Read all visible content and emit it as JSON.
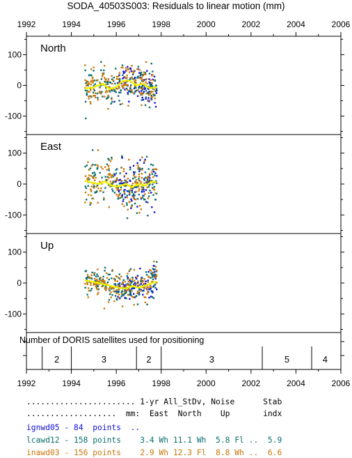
{
  "title": "SODA_40503S003: Residuals to linear motion (mm)",
  "colors": {
    "ignwd05": "#1010d8",
    "lcawd12": "#0a6e6e",
    "inawd03": "#c8780a",
    "smooth": "#f0f000",
    "frame": "#000000"
  },
  "chart_data": {
    "type": "scatter",
    "x_ticks": [
      "1992",
      "1994",
      "1996",
      "1998",
      "2000",
      "2002",
      "2004",
      "2006"
    ],
    "xlim": [
      1992,
      2006
    ],
    "series_names": [
      "ignwd05",
      "lcawd12",
      "inawd03"
    ],
    "panels": [
      {
        "label": "North",
        "ylim": [
          -160,
          160
        ],
        "y_ticks": [
          "100",
          "0",
          "-100"
        ],
        "x_range": [
          1994.6,
          1997.8
        ],
        "smooth_line": [
          [
            1994.6,
            -10
          ],
          [
            1994.9,
            -8
          ],
          [
            1995.2,
            0
          ],
          [
            1995.4,
            5
          ],
          [
            1995.7,
            -12
          ],
          [
            1996.0,
            -5
          ],
          [
            1996.3,
            15
          ],
          [
            1996.6,
            15
          ],
          [
            1996.9,
            0
          ],
          [
            1997.2,
            5
          ],
          [
            1997.5,
            -10
          ],
          [
            1997.8,
            -5
          ]
        ]
      },
      {
        "label": "East",
        "ylim": [
          -160,
          160
        ],
        "y_ticks": [
          "100",
          "0",
          "-100"
        ],
        "x_range": [
          1994.6,
          1997.8
        ],
        "smooth_line": [
          [
            1994.6,
            10
          ],
          [
            1994.9,
            5
          ],
          [
            1995.2,
            0
          ],
          [
            1995.5,
            8
          ],
          [
            1995.8,
            -5
          ],
          [
            1996.1,
            -8
          ],
          [
            1996.4,
            0
          ],
          [
            1996.7,
            -10
          ],
          [
            1997.0,
            0
          ],
          [
            1997.3,
            -5
          ],
          [
            1997.6,
            8
          ],
          [
            1997.8,
            5
          ]
        ]
      },
      {
        "label": "Up",
        "ylim": [
          -160,
          160
        ],
        "y_ticks": [
          "100",
          "0",
          "-100"
        ],
        "x_range": [
          1994.6,
          1997.8
        ],
        "smooth_line": [
          [
            1994.6,
            8
          ],
          [
            1994.9,
            5
          ],
          [
            1995.2,
            0
          ],
          [
            1995.5,
            -5
          ],
          [
            1995.8,
            -10
          ],
          [
            1996.1,
            -15
          ],
          [
            1996.4,
            -18
          ],
          [
            1996.7,
            -10
          ],
          [
            1997.0,
            -15
          ],
          [
            1997.3,
            -8
          ],
          [
            1997.6,
            0
          ],
          [
            1997.8,
            5
          ]
        ]
      }
    ],
    "satellites": {
      "title": "Number of DORIS satellites used for positioning",
      "dividers": [
        1992.7,
        1994.0,
        1996.9,
        1998.0,
        2002.5,
        2004.7
      ],
      "segments": [
        {
          "x": 1993.35,
          "n": "2"
        },
        {
          "x": 1995.45,
          "n": "3"
        },
        {
          "x": 1997.45,
          "n": "2"
        },
        {
          "x": 2000.25,
          "n": "3"
        },
        {
          "x": 2003.6,
          "n": "5"
        },
        {
          "x": 2005.3,
          "n": "4"
        }
      ]
    }
  },
  "stats": {
    "header1": "....................... 1-yr All_StDv, Noise      Stab",
    "header2": "...................  mm:  East  North    Up       indx",
    "rows": [
      {
        "id": "ignwd05",
        "text": "ignwd05 - 84  points  .."
      },
      {
        "id": "lcawd12",
        "text": "lcawd12 - 158 points    3.4 Wh 11.1 Wh  5.8 Fl ..  5.9"
      },
      {
        "id": "inawd03",
        "text": "inawd03 - 156 points    2.9 Wh 12.3 Fl  8.8 Wh ..  6.6"
      }
    ]
  }
}
